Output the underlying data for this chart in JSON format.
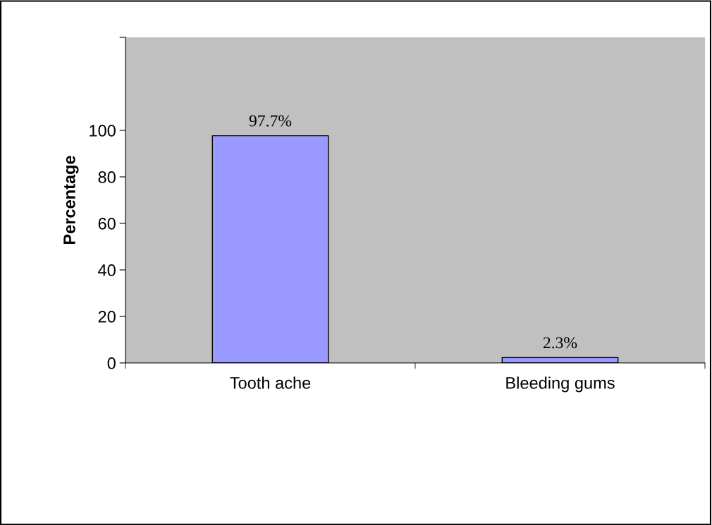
{
  "chart_data": {
    "type": "bar",
    "ylabel": "Percentage",
    "categories": [
      "Tooth ache",
      "Bleeding gums"
    ],
    "values": [
      97.7,
      2.3
    ],
    "value_labels": [
      "97.7%",
      "2.3%"
    ],
    "color": "#9999ff",
    "ylim": [
      0,
      140
    ],
    "yticks": [
      0,
      20,
      40,
      60,
      80,
      100,
      {
        "value": 140,
        "label": null
      }
    ],
    "grid": false
  }
}
